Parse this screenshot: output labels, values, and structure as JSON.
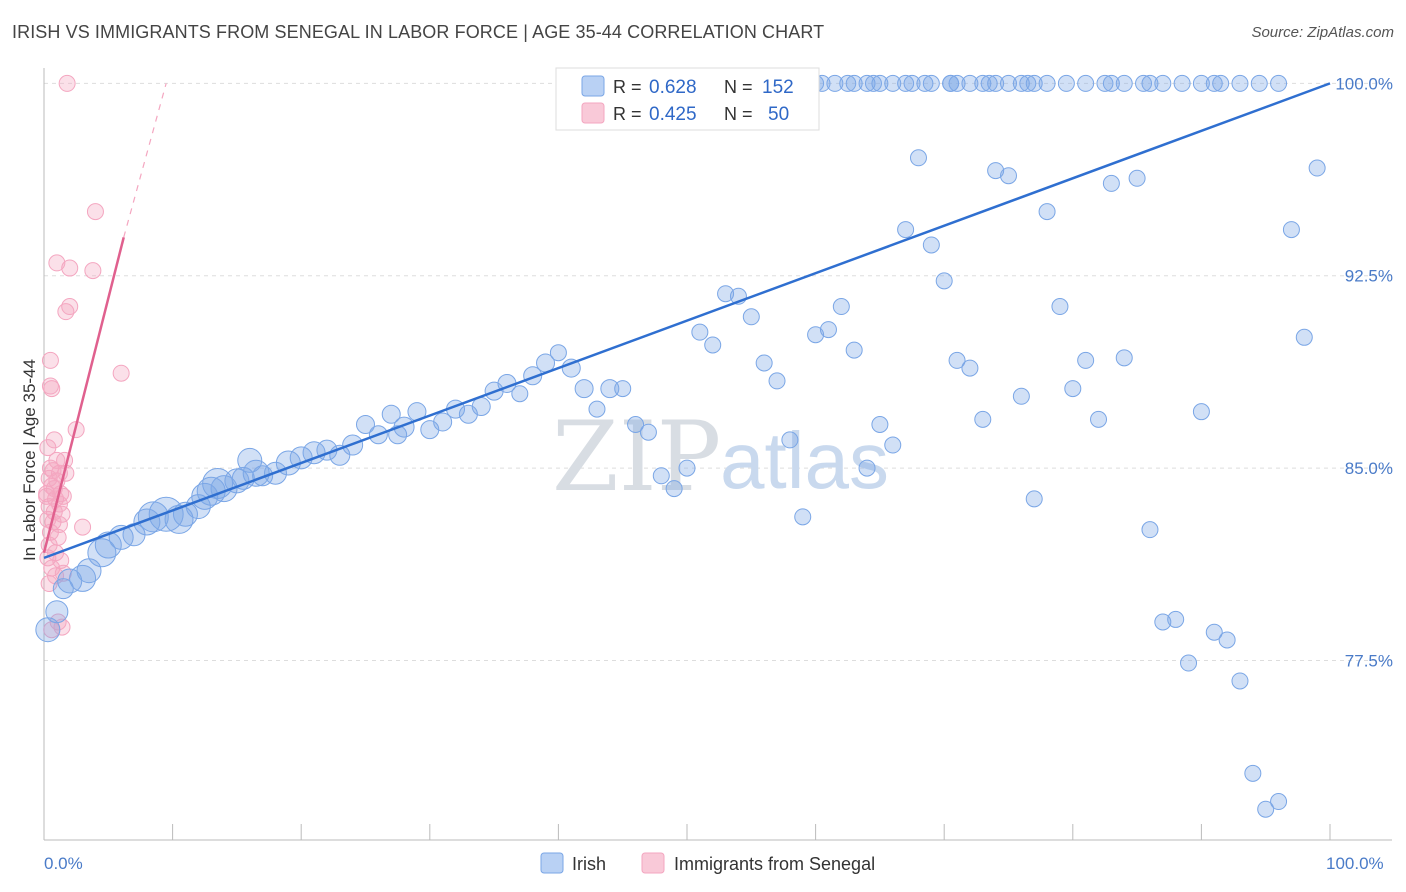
{
  "title": "IRISH VS IMMIGRANTS FROM SENEGAL IN LABOR FORCE | AGE 35-44 CORRELATION CHART",
  "source": "Source: ZipAtlas.com",
  "watermark": {
    "zip": "ZIP",
    "atlas": "atlas"
  },
  "colors": {
    "irish": "#7aa6e6",
    "irish_line": "#2f6fd0",
    "senegal": "#f4a6c0",
    "senegal_line": "#e0608e",
    "axis_text": "#4a7bc8",
    "grid": "#dddddd"
  },
  "legend": {
    "r_label": "R =",
    "n_label": "N =",
    "rows": [
      {
        "name": "Irish",
        "r": "0.628",
        "n": "152"
      },
      {
        "name": "Immigrants from Senegal",
        "r": "0.425",
        "n": "50"
      }
    ]
  },
  "chart_data": {
    "type": "scatter",
    "title": "IRISH VS IMMIGRANTS FROM SENEGAL IN LABOR FORCE | AGE 35-44 CORRELATION CHART",
    "xlabel": "",
    "ylabel": "In Labor Force | Age 35-44",
    "xlim": [
      0,
      100
    ],
    "ylim": [
      70.5,
      100.6
    ],
    "x_tick_labels": {
      "min": "0.0%",
      "max": "100.0%"
    },
    "y_ticks": [
      {
        "value": 77.5,
        "label": "77.5%"
      },
      {
        "value": 85.0,
        "label": "85.0%"
      },
      {
        "value": 92.5,
        "label": "92.5%"
      },
      {
        "value": 100.0,
        "label": "100.0%"
      }
    ],
    "series": [
      {
        "name": "Irish",
        "trend": {
          "x": [
            0,
            100
          ],
          "y": [
            81.5,
            100.0
          ]
        },
        "points": [
          [
            0.3,
            78.7,
            12
          ],
          [
            1,
            79.4,
            11
          ],
          [
            1.5,
            80.3,
            10
          ],
          [
            2,
            80.6,
            12
          ],
          [
            3,
            80.7,
            13
          ],
          [
            3.5,
            81.0,
            12
          ],
          [
            4.5,
            81.7,
            14
          ],
          [
            5,
            82.0,
            13
          ],
          [
            6,
            82.3,
            12
          ],
          [
            7,
            82.4,
            11
          ],
          [
            8,
            82.9,
            13
          ],
          [
            8.5,
            83.1,
            15
          ],
          [
            9.5,
            83.2,
            17
          ],
          [
            10.5,
            83.0,
            14
          ],
          [
            11,
            83.2,
            12
          ],
          [
            12,
            83.5,
            12
          ],
          [
            12.5,
            83.9,
            13
          ],
          [
            13,
            84.1,
            14
          ],
          [
            13.5,
            84.4,
            15
          ],
          [
            14,
            84.2,
            13
          ],
          [
            15,
            84.5,
            12
          ],
          [
            15.5,
            84.6,
            11
          ],
          [
            16,
            85.3,
            12
          ],
          [
            17,
            84.7,
            10
          ],
          [
            18,
            84.8,
            11
          ],
          [
            16.5,
            84.8,
            13
          ],
          [
            19,
            85.2,
            12
          ],
          [
            20,
            85.4,
            11
          ],
          [
            21,
            85.6,
            11
          ],
          [
            22,
            85.7,
            10
          ],
          [
            23,
            85.5,
            10
          ],
          [
            24,
            85.9,
            10
          ],
          [
            25,
            86.7,
            9
          ],
          [
            26,
            86.3,
            9
          ],
          [
            27,
            87.1,
            9
          ],
          [
            27.5,
            86.3,
            9
          ],
          [
            28,
            86.6,
            10
          ],
          [
            29,
            87.2,
            9
          ],
          [
            30,
            86.5,
            9
          ],
          [
            31,
            86.8,
            9
          ],
          [
            32,
            87.3,
            9
          ],
          [
            33,
            87.1,
            9
          ],
          [
            34,
            87.4,
            9
          ],
          [
            35,
            88.0,
            9
          ],
          [
            36,
            88.3,
            9
          ],
          [
            37,
            87.9,
            8
          ],
          [
            38,
            88.6,
            9
          ],
          [
            39,
            89.1,
            9
          ],
          [
            40,
            89.5,
            8
          ],
          [
            41,
            88.9,
            9
          ],
          [
            42,
            88.1,
            9
          ],
          [
            43,
            87.3,
            8
          ],
          [
            44,
            88.1,
            9
          ],
          [
            45,
            88.1,
            8
          ],
          [
            46,
            86.7,
            8
          ],
          [
            47,
            86.4,
            8
          ],
          [
            48,
            84.7,
            8
          ],
          [
            49,
            84.2,
            8
          ],
          [
            50,
            85.0,
            8
          ],
          [
            51,
            90.3,
            8
          ],
          [
            52,
            89.8,
            8
          ],
          [
            53,
            91.8,
            8
          ],
          [
            54,
            91.7,
            8
          ],
          [
            55,
            90.9,
            8
          ],
          [
            56,
            89.1,
            8
          ],
          [
            57,
            88.4,
            8
          ],
          [
            58,
            86.1,
            8
          ],
          [
            59,
            83.1,
            8
          ],
          [
            60,
            90.2,
            8
          ],
          [
            61,
            90.4,
            8
          ],
          [
            62,
            91.3,
            8
          ],
          [
            63,
            89.6,
            8
          ],
          [
            64,
            85.0,
            8
          ],
          [
            65,
            86.7,
            8
          ],
          [
            66,
            85.9,
            8
          ],
          [
            67,
            94.3,
            8
          ],
          [
            68,
            97.1,
            8
          ],
          [
            69,
            93.7,
            8
          ],
          [
            70,
            92.3,
            8
          ],
          [
            71,
            89.2,
            8
          ],
          [
            72,
            88.9,
            8
          ],
          [
            73,
            86.9,
            8
          ],
          [
            74,
            96.6,
            8
          ],
          [
            75,
            96.4,
            8
          ],
          [
            76,
            87.8,
            8
          ],
          [
            77,
            83.8,
            8
          ],
          [
            78,
            95.0,
            8
          ],
          [
            79,
            91.3,
            8
          ],
          [
            80,
            88.1,
            8
          ],
          [
            81,
            89.2,
            8
          ],
          [
            82,
            86.9,
            8
          ],
          [
            83,
            96.1,
            8
          ],
          [
            84,
            89.3,
            8
          ],
          [
            85,
            96.3,
            8
          ],
          [
            86,
            82.6,
            8
          ],
          [
            87,
            79.0,
            8
          ],
          [
            88,
            79.1,
            8
          ],
          [
            89,
            77.4,
            8
          ],
          [
            90,
            87.2,
            8
          ],
          [
            91,
            78.6,
            8
          ],
          [
            92,
            78.3,
            8
          ],
          [
            93,
            76.7,
            8
          ],
          [
            94,
            73.1,
            8
          ],
          [
            95,
            71.7,
            8
          ],
          [
            96,
            72.0,
            8
          ],
          [
            97,
            94.3,
            8
          ],
          [
            98,
            90.1,
            8
          ],
          [
            99,
            96.7,
            8
          ],
          [
            52.5,
            100.0,
            8
          ],
          [
            55.5,
            100.0,
            8
          ],
          [
            56.5,
            100.0,
            8
          ],
          [
            58.5,
            100.0,
            8
          ],
          [
            60,
            100.0,
            8
          ],
          [
            61.5,
            100.0,
            8
          ],
          [
            63,
            100.0,
            8
          ],
          [
            64.5,
            100.0,
            8
          ],
          [
            66,
            100.0,
            8
          ],
          [
            67.5,
            100.0,
            8
          ],
          [
            69,
            100.0,
            8
          ],
          [
            70.5,
            100.0,
            8
          ],
          [
            72,
            100.0,
            8
          ],
          [
            73.5,
            100.0,
            8
          ],
          [
            75,
            100.0,
            8
          ],
          [
            76.5,
            100.0,
            8
          ],
          [
            78,
            100.0,
            8
          ],
          [
            79.5,
            100.0,
            8
          ],
          [
            81,
            100.0,
            8
          ],
          [
            82.5,
            100.0,
            8
          ],
          [
            84,
            100.0,
            8
          ],
          [
            85.5,
            100.0,
            8
          ],
          [
            87,
            100.0,
            8
          ],
          [
            88.5,
            100.0,
            8
          ],
          [
            90,
            100.0,
            8
          ],
          [
            91.5,
            100.0,
            8
          ],
          [
            93,
            100.0,
            8
          ],
          [
            94.5,
            100.0,
            8
          ],
          [
            96,
            100.0,
            8
          ],
          [
            91,
            100.0,
            8
          ],
          [
            70.5,
            100.0,
            8
          ],
          [
            64,
            100.0,
            8
          ],
          [
            60.5,
            100.0,
            8
          ],
          [
            62.5,
            100.0,
            8
          ],
          [
            65,
            100.0,
            8
          ],
          [
            67,
            100.0,
            8
          ],
          [
            68.5,
            100.0,
            8
          ],
          [
            71,
            100.0,
            8
          ],
          [
            73,
            100.0,
            8
          ],
          [
            74,
            100.0,
            8
          ],
          [
            76,
            100.0,
            8
          ],
          [
            77,
            100.0,
            8
          ],
          [
            83,
            100.0,
            8
          ],
          [
            86,
            100.0,
            8
          ]
        ]
      },
      {
        "name": "Immigrants from Senegal",
        "trend": {
          "x": [
            0,
            6.2
          ],
          "y": [
            81.7,
            94.0
          ]
        },
        "trend_dashed": {
          "x": [
            6.2,
            9.5
          ],
          "y": [
            94.0,
            100.0
          ]
        },
        "points": [
          [
            1.8,
            100.0,
            8
          ],
          [
            4,
            95.0,
            8
          ],
          [
            1,
            93.0,
            8
          ],
          [
            2,
            92.8,
            8
          ],
          [
            3.8,
            92.7,
            8
          ],
          [
            1.7,
            91.1,
            8
          ],
          [
            2,
            91.3,
            8
          ],
          [
            0.5,
            89.2,
            8
          ],
          [
            0.5,
            88.2,
            8
          ],
          [
            0.6,
            88.1,
            8
          ],
          [
            6,
            88.7,
            8
          ],
          [
            2.5,
            86.5,
            8
          ],
          [
            0.8,
            86.1,
            8
          ],
          [
            1,
            85.3,
            8
          ],
          [
            0.3,
            85.8,
            8
          ],
          [
            1.6,
            85.3,
            8
          ],
          [
            1.2,
            84.8,
            8
          ],
          [
            0.4,
            84.6,
            8
          ],
          [
            0.8,
            84.2,
            8
          ],
          [
            1.3,
            84.0,
            8
          ],
          [
            0.6,
            84.3,
            8
          ],
          [
            0.9,
            83.8,
            8
          ],
          [
            0.2,
            83.9,
            8
          ],
          [
            0.4,
            83.5,
            8
          ],
          [
            1.2,
            83.6,
            8
          ],
          [
            1.4,
            83.2,
            8
          ],
          [
            0.7,
            82.9,
            8
          ],
          [
            0.5,
            82.5,
            8
          ],
          [
            3,
            82.7,
            8
          ],
          [
            1.1,
            82.3,
            8
          ],
          [
            0.9,
            81.7,
            8
          ],
          [
            1.3,
            81.4,
            8
          ],
          [
            0.6,
            81.1,
            8
          ],
          [
            1.5,
            80.9,
            8
          ],
          [
            0.4,
            80.5,
            8
          ],
          [
            0.2,
            84.0,
            8
          ],
          [
            0.3,
            83.0,
            8
          ],
          [
            1.1,
            79.0,
            8
          ],
          [
            1.4,
            78.8,
            8
          ],
          [
            0.6,
            78.7,
            8
          ],
          [
            1.0,
            84.5,
            8
          ],
          [
            0.8,
            83.3,
            8
          ],
          [
            0.4,
            82.0,
            8
          ],
          [
            1.7,
            84.8,
            8
          ],
          [
            0.5,
            85.0,
            8
          ],
          [
            1.2,
            82.8,
            8
          ],
          [
            0.9,
            80.8,
            8
          ],
          [
            0.3,
            81.5,
            8
          ],
          [
            0.7,
            84.9,
            8
          ],
          [
            1.5,
            83.9,
            8
          ]
        ]
      }
    ]
  }
}
